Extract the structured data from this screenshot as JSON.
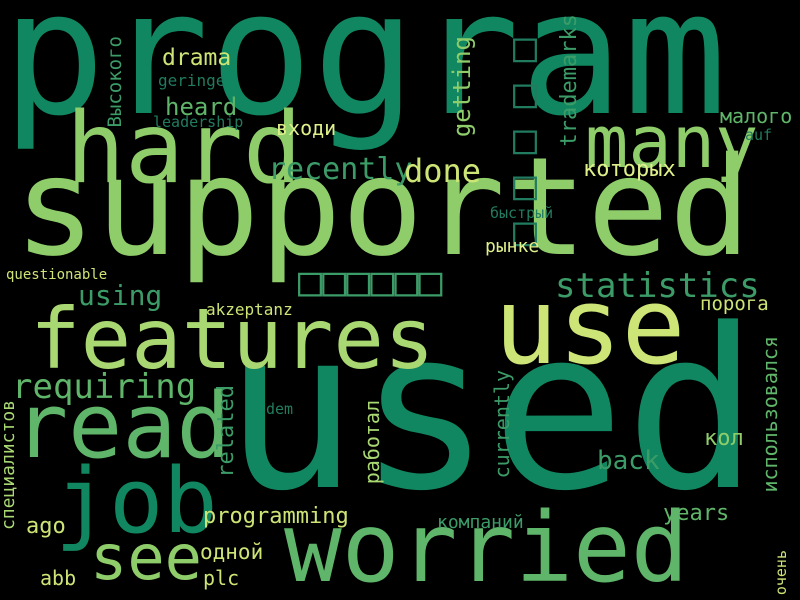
{
  "words": [
    {
      "id": "w-program",
      "text": "program",
      "color": "#118761"
    },
    {
      "id": "w-supported",
      "text": "supported",
      "color": "#8fcd6b"
    },
    {
      "id": "w-used",
      "text": "used",
      "color": "#118761"
    },
    {
      "id": "w-hard",
      "text": "hard",
      "color": "#8fcd6b"
    },
    {
      "id": "w-many",
      "text": "many",
      "color": "#8fcd6b"
    },
    {
      "id": "w-use",
      "text": "use",
      "color": "#cde576"
    },
    {
      "id": "w-features",
      "text": "features",
      "color": "#a9d873"
    },
    {
      "id": "w-read",
      "text": "read",
      "color": "#5fb569"
    },
    {
      "id": "w-job",
      "text": "job",
      "color": "#118761"
    },
    {
      "id": "w-worried",
      "text": "worried",
      "color": "#5fb569"
    },
    {
      "id": "w-see",
      "text": "see",
      "color": "#8fcd6b"
    },
    {
      "id": "w-requiring",
      "text": "requiring",
      "color": "#5fb569"
    },
    {
      "id": "w-using",
      "text": "using",
      "color": "#3c9c68"
    },
    {
      "id": "w-statistics",
      "text": "statistics",
      "color": "#3c9c68"
    },
    {
      "id": "w-recently",
      "text": "recently",
      "color": "#3c9c68"
    },
    {
      "id": "w-done",
      "text": "done",
      "color": "#cde576"
    },
    {
      "id": "w-drama",
      "text": "drama",
      "color": "#cde576"
    },
    {
      "id": "w-heard",
      "text": "heard",
      "color": "#5fb569"
    },
    {
      "id": "w-getting",
      "text": "getting",
      "color": "#8fcd6b"
    },
    {
      "id": "w-trademarks",
      "text": "trademarks",
      "color": "#3c9c68"
    },
    {
      "id": "w-cjk-1",
      "text": "□□□□□",
      "color": "#217b5f"
    },
    {
      "id": "w-cjk-2",
      "text": "□□□□□□",
      "color": "#3c9c68"
    },
    {
      "id": "w-vysokogo",
      "text": "Высокого",
      "color": "#3c9c68"
    },
    {
      "id": "w-geringe",
      "text": "geringe",
      "color": "#217b5f"
    },
    {
      "id": "w-leadership",
      "text": "leadership",
      "color": "#217b5f"
    },
    {
      "id": "w-vkhodi",
      "text": "входи",
      "color": "#dff08b"
    },
    {
      "id": "w-malogo",
      "text": "малого",
      "color": "#5fb569"
    },
    {
      "id": "w-auf",
      "text": "auf",
      "color": "#217b5f"
    },
    {
      "id": "w-kotorykh",
      "text": "которых",
      "color": "#dff08b"
    },
    {
      "id": "w-bystry",
      "text": "быстрый",
      "color": "#217b5f"
    },
    {
      "id": "w-rynke",
      "text": "рынке",
      "color": "#dff08b"
    },
    {
      "id": "w-questionable",
      "text": "questionable",
      "color": "#cde576"
    },
    {
      "id": "w-akzeptanz",
      "text": "akzeptanz",
      "color": "#cde576"
    },
    {
      "id": "w-poroga",
      "text": "порога",
      "color": "#cde576"
    },
    {
      "id": "w-ispolzovalsya",
      "text": "использовался",
      "color": "#5fb569"
    },
    {
      "id": "w-dem",
      "text": "dem",
      "color": "#217b5f"
    },
    {
      "id": "w-related",
      "text": "related",
      "color": "#3c9c68"
    },
    {
      "id": "w-rabotal",
      "text": "работал",
      "color": "#a9d873"
    },
    {
      "id": "w-currently",
      "text": "currently",
      "color": "#3c9c68"
    },
    {
      "id": "w-kol",
      "text": "кол",
      "color": "#8fcd6b"
    },
    {
      "id": "w-back",
      "text": "back",
      "color": "#3c9c68"
    },
    {
      "id": "w-spetsialistov",
      "text": "специалистов",
      "color": "#a9d873"
    },
    {
      "id": "w-ago",
      "text": "ago",
      "color": "#cde576"
    },
    {
      "id": "w-programming",
      "text": "programming",
      "color": "#cde576"
    },
    {
      "id": "w-kompaniy",
      "text": "компаний",
      "color": "#3c9c68"
    },
    {
      "id": "w-years",
      "text": "years",
      "color": "#5fb569"
    },
    {
      "id": "w-odnoy",
      "text": "одной",
      "color": "#cde576"
    },
    {
      "id": "w-abb",
      "text": "abb",
      "color": "#cde576"
    },
    {
      "id": "w-plc",
      "text": "plc",
      "color": "#cde576"
    },
    {
      "id": "w-ochen",
      "text": "очень",
      "color": "#cde576"
    }
  ]
}
